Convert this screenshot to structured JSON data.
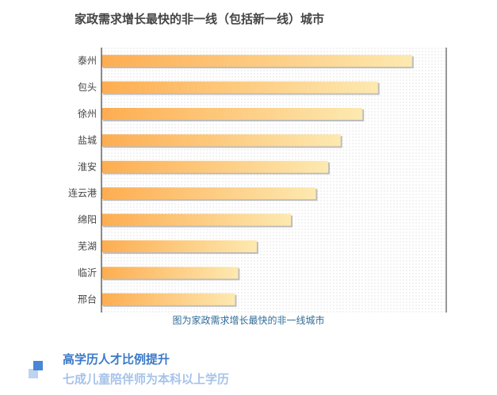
{
  "chart_data": {
    "type": "bar",
    "orientation": "horizontal",
    "title": "家政需求增长最快的非一线（包括新一线）城市",
    "categories": [
      "泰州",
      "包头",
      "徐州",
      "盐城",
      "淮安",
      "连云港",
      "绵阳",
      "芜湖",
      "临沂",
      "邢台"
    ],
    "values": [
      100,
      89,
      84,
      77,
      73,
      69,
      61,
      50,
      44,
      43
    ],
    "xlim": [
      0,
      111
    ],
    "xlabel": "",
    "ylabel": "",
    "grid": false,
    "legend": "none",
    "bar_gradient": [
      "#fdad51",
      "#fde9b0"
    ],
    "plot_background": "dotted"
  },
  "caption": "图为家政需求增长最快的非一线城市",
  "section": {
    "title": "高学历人才比例提升",
    "subtitle": "七成儿童陪伴师为本科以上学历"
  },
  "colors": {
    "caption": "#2f6c97",
    "section_title": "#3a79c8",
    "section_subtitle": "#a6c3ea",
    "icon_front": "#4a86d8",
    "icon_back": "#bfd3f0"
  }
}
